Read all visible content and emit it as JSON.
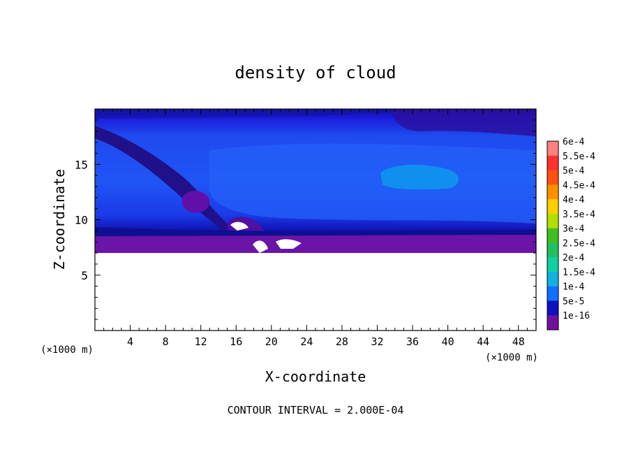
{
  "chart_data": {
    "type": "heatmap",
    "title": "density of cloud",
    "xlabel": "X-coordinate",
    "ylabel": "Z-coordinate",
    "x_unit_left": "(×1000 m)",
    "x_unit_right": "(×1000 m)",
    "xlim": [
      0,
      50
    ],
    "ylim": [
      0,
      20
    ],
    "x_ticks": [
      4,
      8,
      12,
      16,
      20,
      24,
      28,
      32,
      36,
      40,
      44,
      48
    ],
    "x_tick_labels": [
      "4",
      "8",
      "12",
      "16",
      "20",
      "24",
      "28",
      "32",
      "36",
      "40",
      "44",
      "48"
    ],
    "y_ticks": [
      5,
      10,
      15
    ],
    "y_tick_labels": [
      "5",
      "10",
      "15"
    ],
    "footer": "CONTOUR INTERVAL = 2.000E-04",
    "colorbar": {
      "labels": [
        "6e-4",
        "5.5e-4",
        "5e-4",
        "4.5e-4",
        "4e-4",
        "3.5e-4",
        "3e-4",
        "2.5e-4",
        "2e-4",
        "1.5e-4",
        "1e-4",
        "5e-5",
        "1e-16"
      ],
      "colors": [
        "#ff8080",
        "#ff3030",
        "#ff5010",
        "#ff9000",
        "#ffd000",
        "#b0e000",
        "#40c020",
        "#20c060",
        "#10d0a0",
        "#10b0e0",
        "#1070ff",
        "#1010c0",
        "#7010a0"
      ]
    },
    "regions": [
      {
        "name": "cloud-base",
        "x_range": [
          0,
          50
        ],
        "z_range": [
          7,
          8.5
        ],
        "level": "1e-16"
      },
      {
        "name": "main-cloud-layer",
        "x_range": [
          0,
          50
        ],
        "z_range": [
          8.5,
          19
        ],
        "level": "5e-5 to 1e-4"
      },
      {
        "name": "high-density-pocket",
        "x_range": [
          32,
          41
        ],
        "z_range": [
          13,
          15
        ],
        "level": "1e-4 to 1.5e-4"
      },
      {
        "name": "upper-dark-band",
        "x_range": [
          34,
          50
        ],
        "z_range": [
          18,
          20
        ],
        "level": "1e-16"
      },
      {
        "name": "clear-below",
        "x_range": [
          0,
          50
        ],
        "z_range": [
          0,
          7
        ],
        "level": "none"
      }
    ]
  }
}
